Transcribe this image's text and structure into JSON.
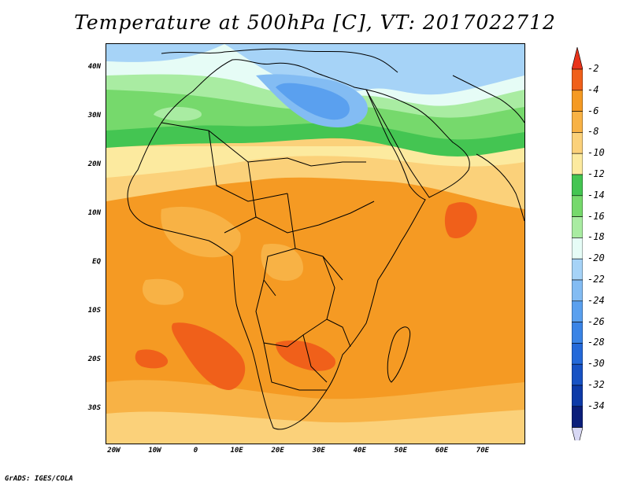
{
  "title": "Temperature at 500hPa [C], VT: 2017022712",
  "footer": "GrADS: IGES/COLA",
  "map": {
    "lat_labels": [
      {
        "text": "40N",
        "lat": 40
      },
      {
        "text": "30N",
        "lat": 30
      },
      {
        "text": "20N",
        "lat": 20
      },
      {
        "text": "10N",
        "lat": 10
      },
      {
        "text": "EQ",
        "lat": 0
      },
      {
        "text": "10S",
        "lat": -10
      },
      {
        "text": "20S",
        "lat": -20
      },
      {
        "text": "30S",
        "lat": -30
      }
    ],
    "lon_labels": [
      {
        "text": "20W",
        "lon": -20
      },
      {
        "text": "10W",
        "lon": -10
      },
      {
        "text": "0",
        "lon": 0
      },
      {
        "text": "10E",
        "lon": 10
      },
      {
        "text": "20E",
        "lon": 20
      },
      {
        "text": "30E",
        "lon": 30
      },
      {
        "text": "40E",
        "lon": 40
      },
      {
        "text": "50E",
        "lon": 50
      },
      {
        "text": "60E",
        "lon": 60
      },
      {
        "text": "70E",
        "lon": 70
      }
    ],
    "lon_range": [
      -22,
      80
    ],
    "lat_range": [
      -37,
      45
    ]
  },
  "colorbar": {
    "labels": [
      "-2",
      "-4",
      "-6",
      "-8",
      "-10",
      "-12",
      "-14",
      "-16",
      "-18",
      "-20",
      "-22",
      "-24",
      "-26",
      "-28",
      "-30",
      "-32",
      "-34"
    ],
    "colors": [
      "#f0601a",
      "#f59a23",
      "#f8b245",
      "#fbd17a",
      "#fcea9f",
      "#44c552",
      "#76d96c",
      "#a9eca2",
      "#e6fcf6",
      "#a6d3f7",
      "#83bcf3",
      "#5aa0ef",
      "#3a84e6",
      "#2469d9",
      "#1752c4",
      "#0d3aa8",
      "#0b1e7a"
    ],
    "top_color": "#e8331a",
    "bottom_color": "#d8d8f4"
  }
}
